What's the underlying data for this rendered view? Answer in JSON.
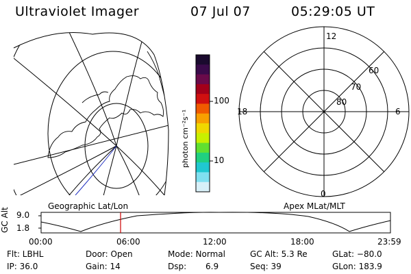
{
  "header": {
    "title": "Ultraviolet Imager",
    "date": "07 Jul 07",
    "time": "05:29:05 UT"
  },
  "colorbar": {
    "label": "photon cm⁻²s⁻¹",
    "ticks": [
      "100",
      "10"
    ],
    "scale": "log",
    "colors": [
      "#1a0a2e",
      "#3a0a4a",
      "#6a0a4a",
      "#a3001a",
      "#d01010",
      "#f05a00",
      "#f8a000",
      "#f0d800",
      "#c8f000",
      "#60e030",
      "#20d080",
      "#20c8d0",
      "#80e0f0",
      "#d8f0f8"
    ]
  },
  "left_map": {
    "label": "Geographic Lat/Lon"
  },
  "right_polar": {
    "label": "Apex MLat/MLT",
    "mlt_labels": [
      "12",
      "18",
      "6",
      "0"
    ],
    "lat_labels": [
      "60",
      "70",
      "80"
    ]
  },
  "altitude_panel": {
    "ylabel": "GC Alt",
    "yticks": [
      "9.0",
      "1.8"
    ],
    "xticks": [
      "00:00",
      "06:00",
      "12:00",
      "18:00",
      "23:59"
    ],
    "current_marker_color": "#cc0000"
  },
  "info": {
    "filter": "Flt: LBHL",
    "door": "Door: Open",
    "mode": "Mode: Normal",
    "gc_alt": "GC Alt: 5.3 Re",
    "glat": "GLat: −80.0",
    "ip": "IP: 36.0",
    "gain": "Gain: 14",
    "dsp_label": "Dsp:",
    "dsp_value": "6.9",
    "seq": "Seq: 39",
    "glon": "GLon: 183.9"
  }
}
